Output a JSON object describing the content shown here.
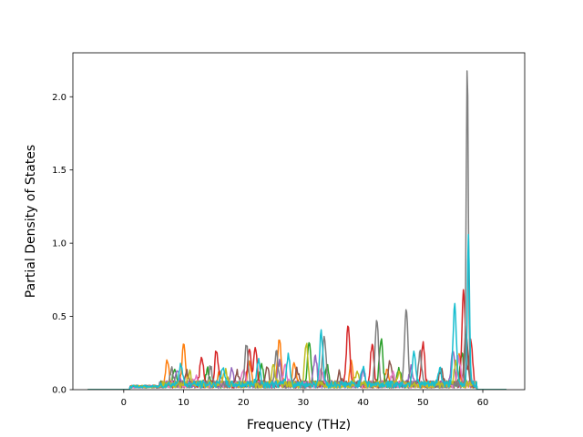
{
  "chart_data": {
    "type": "line",
    "title": "",
    "xlabel": "Frequency (THz)",
    "ylabel": "Partial Density of States",
    "xlim": [
      -8.5,
      67
    ],
    "ylim": [
      0,
      2.3
    ],
    "xticks": [
      0,
      10,
      20,
      30,
      40,
      50,
      60
    ],
    "yticks": [
      0.0,
      0.5,
      1.0,
      1.5,
      2.0
    ],
    "xtick_labels": [
      "0",
      "10",
      "20",
      "30",
      "40",
      "50",
      "60"
    ],
    "ytick_labels": [
      "0.0",
      "0.5",
      "1.0",
      "1.5",
      "2.0"
    ],
    "grid": false,
    "legend": "none",
    "series": [
      {
        "color": "#ff7f0e",
        "peaks": [
          [
            7.3,
            0.17
          ],
          [
            10,
            0.26
          ],
          [
            16,
            0.1
          ],
          [
            21,
            0.14
          ],
          [
            26,
            0.32
          ],
          [
            28.5,
            0.16
          ],
          [
            38,
            0.15
          ],
          [
            44,
            0.12
          ],
          [
            56,
            0.2
          ]
        ]
      },
      {
        "color": "#2ca02c",
        "peaks": [
          [
            8.5,
            0.12
          ],
          [
            14,
            0.1
          ],
          [
            23,
            0.14
          ],
          [
            31,
            0.3
          ],
          [
            34,
            0.12
          ],
          [
            43,
            0.32
          ],
          [
            46,
            0.1
          ],
          [
            56.5,
            0.22
          ]
        ]
      },
      {
        "color": "#d62728",
        "peaks": [
          [
            13,
            0.2
          ],
          [
            15.5,
            0.24
          ],
          [
            21,
            0.26
          ],
          [
            22,
            0.23
          ],
          [
            37.5,
            0.4
          ],
          [
            41.5,
            0.27
          ],
          [
            50,
            0.28
          ],
          [
            56.8,
            0.64
          ],
          [
            58,
            0.3
          ]
        ]
      },
      {
        "color": "#9467bd",
        "peaks": [
          [
            9,
            0.09
          ],
          [
            18,
            0.1
          ],
          [
            26,
            0.15
          ],
          [
            32,
            0.2
          ],
          [
            40,
            0.1
          ],
          [
            48,
            0.12
          ],
          [
            55,
            0.25
          ]
        ]
      },
      {
        "color": "#8c564b",
        "peaks": [
          [
            10.5,
            0.08
          ],
          [
            19,
            0.08
          ],
          [
            24,
            0.12
          ],
          [
            29,
            0.1
          ],
          [
            36,
            0.08
          ],
          [
            44.5,
            0.15
          ],
          [
            53,
            0.1
          ],
          [
            57.2,
            0.35
          ]
        ]
      },
      {
        "color": "#e377c2",
        "peaks": [
          [
            12,
            0.06
          ],
          [
            20,
            0.1
          ],
          [
            27,
            0.12
          ],
          [
            33,
            0.1
          ],
          [
            45,
            0.09
          ],
          [
            56,
            0.18
          ]
        ]
      },
      {
        "color": "#7f7f7f",
        "peaks": [
          [
            8,
            0.1
          ],
          [
            14.5,
            0.12
          ],
          [
            20.5,
            0.27
          ],
          [
            25.5,
            0.22
          ],
          [
            33.5,
            0.33
          ],
          [
            42.3,
            0.43
          ],
          [
            47.2,
            0.53
          ],
          [
            49.5,
            0.22
          ],
          [
            57.4,
            2.19
          ]
        ]
      },
      {
        "color": "#bcbd22",
        "peaks": [
          [
            11,
            0.08
          ],
          [
            17,
            0.09
          ],
          [
            25,
            0.13
          ],
          [
            30.5,
            0.28
          ],
          [
            39,
            0.1
          ],
          [
            46,
            0.08
          ],
          [
            55.5,
            0.15
          ]
        ]
      },
      {
        "color": "#17becf",
        "peaks": [
          [
            9.5,
            0.14
          ],
          [
            16.5,
            0.12
          ],
          [
            22.5,
            0.17
          ],
          [
            27.5,
            0.2
          ],
          [
            33,
            0.35
          ],
          [
            40,
            0.13
          ],
          [
            48.5,
            0.23
          ],
          [
            52.8,
            0.11
          ],
          [
            55.3,
            0.53
          ],
          [
            57.6,
            1.03
          ]
        ]
      }
    ]
  }
}
